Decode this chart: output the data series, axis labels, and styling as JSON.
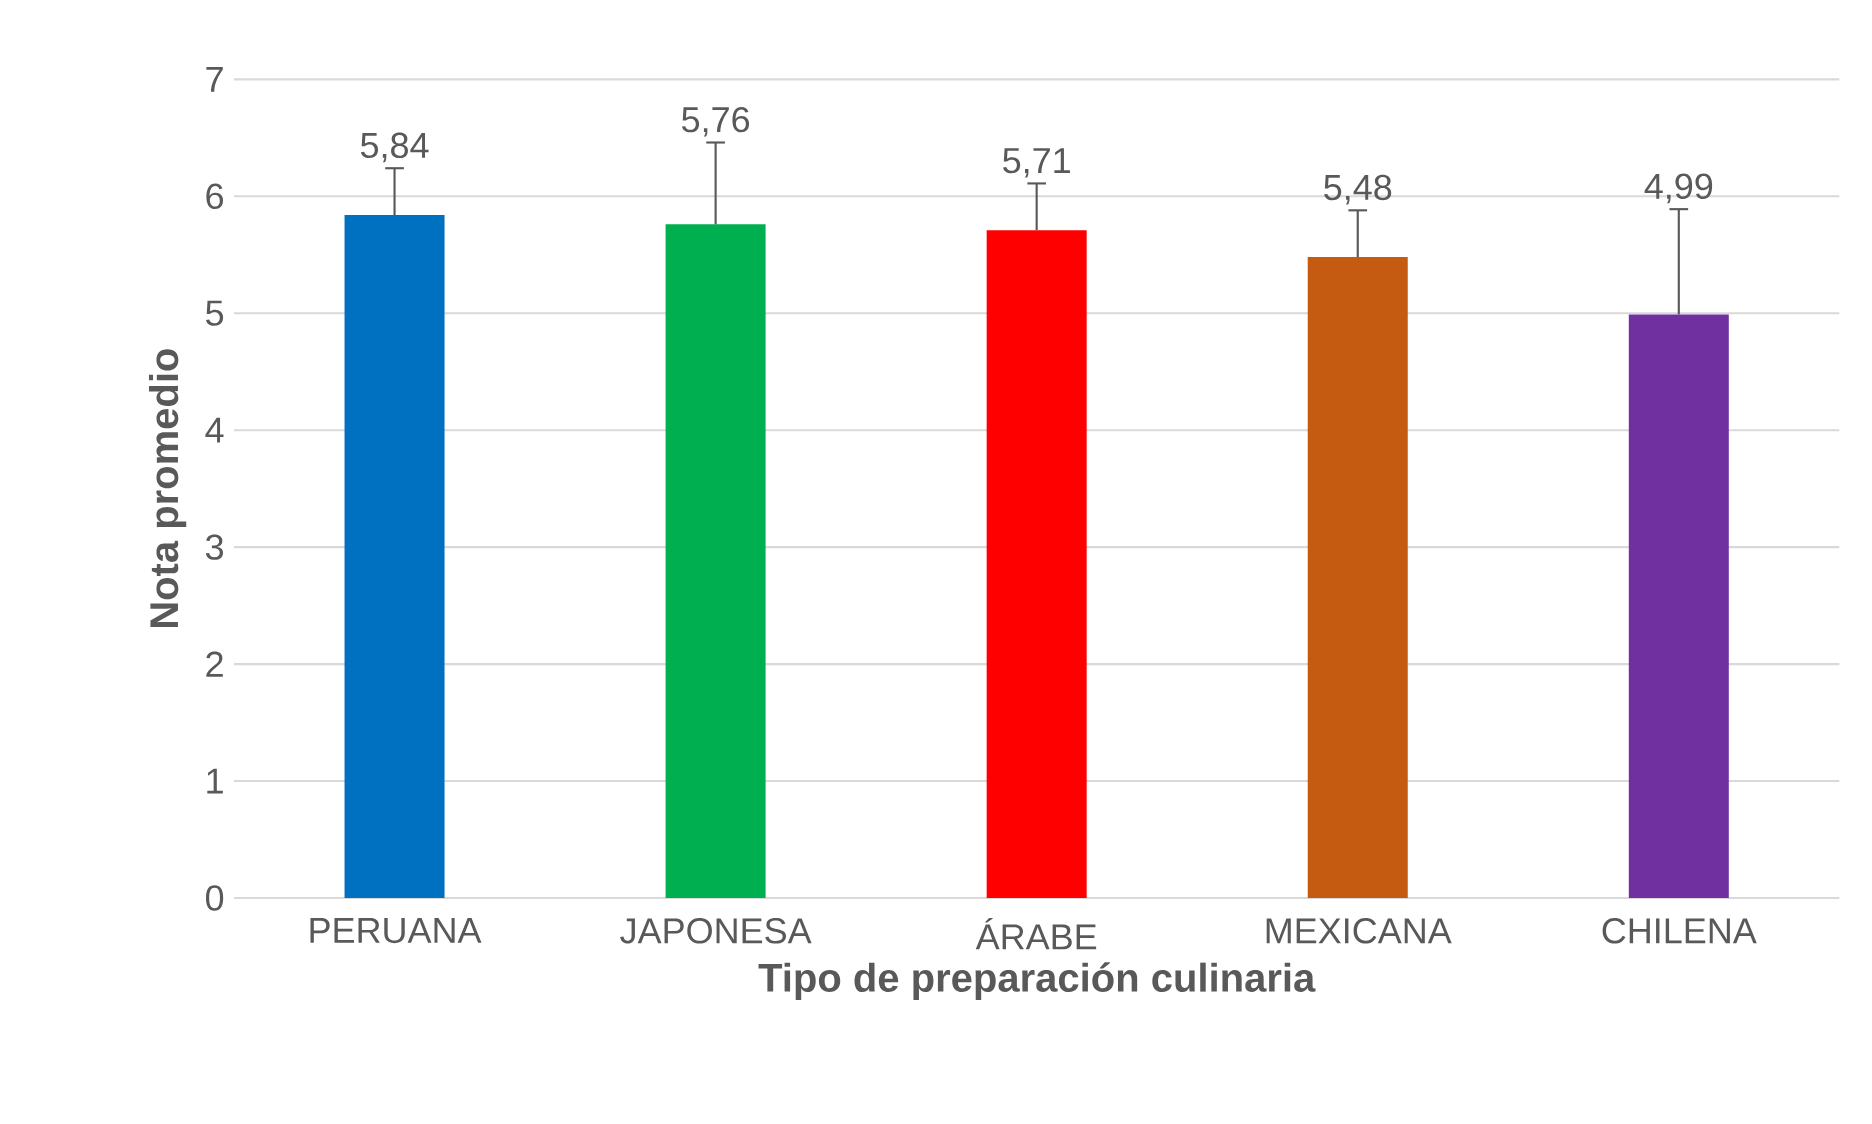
{
  "chart_data": {
    "type": "bar",
    "xlabel": "Tipo de preparación culinaria",
    "ylabel": "Nota promedio",
    "categories": [
      "PERUANA",
      "JAPONESA",
      "ÁRABE",
      "MEXICANA",
      "CHILENA"
    ],
    "values": [
      5.84,
      5.76,
      5.71,
      5.48,
      4.99
    ],
    "value_labels": [
      "5,84",
      "5,76",
      "5,71",
      "5,48",
      "4,99"
    ],
    "colors": [
      "#0070c0",
      "#00b050",
      "#ff0000",
      "#c55a11",
      "#7030a0"
    ],
    "errors": [
      [
        5.84,
        6.24
      ],
      [
        5.76,
        6.46
      ],
      [
        5.71,
        6.11
      ],
      [
        5.48,
        5.88
      ],
      [
        4.99,
        5.89
      ]
    ],
    "ylim": [
      0,
      7
    ],
    "yticks": [
      0,
      1,
      2,
      3,
      4,
      5,
      6,
      7
    ],
    "grid": "y"
  }
}
